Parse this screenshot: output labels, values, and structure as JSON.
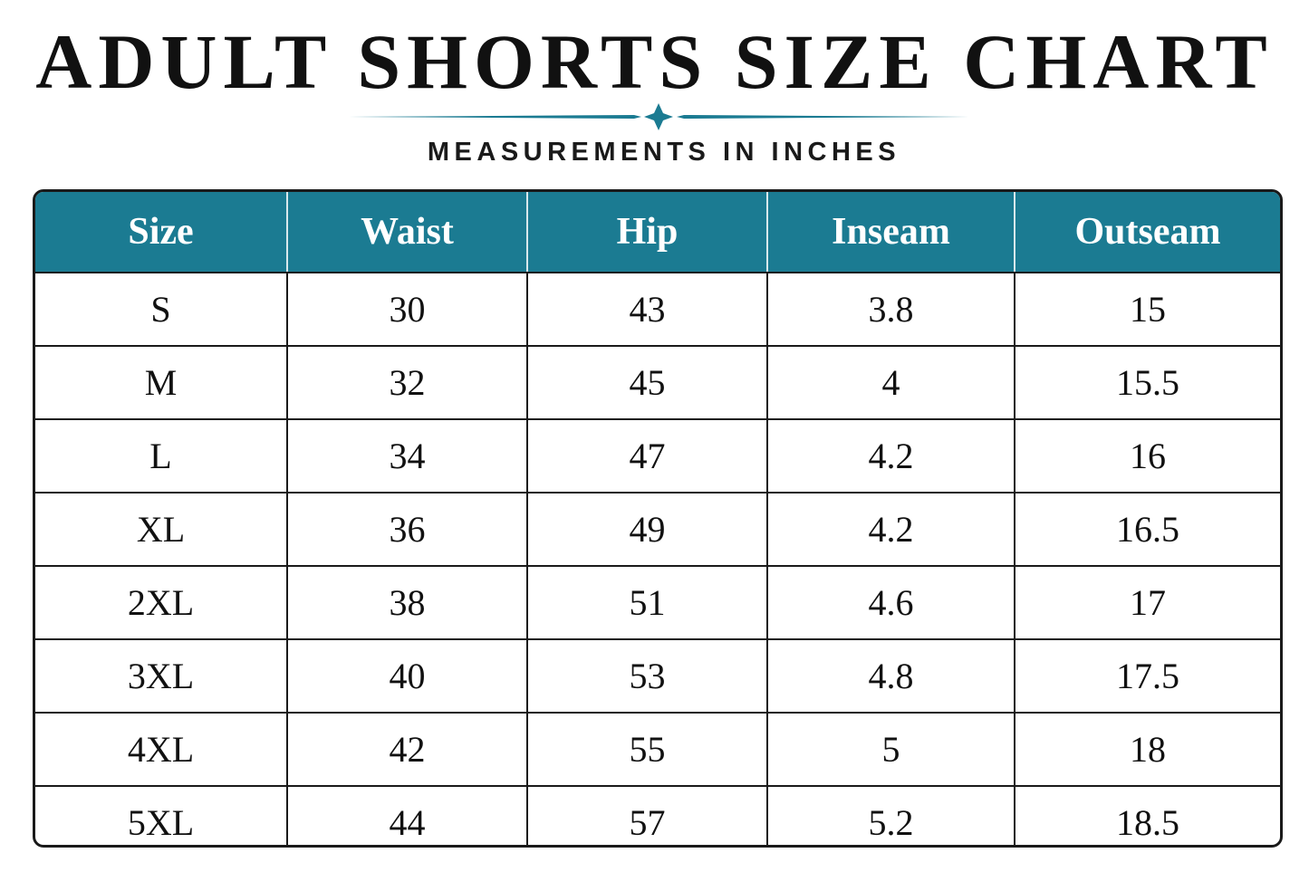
{
  "header": {
    "title": "ADULT SHORTS SIZE CHART",
    "subtitle": "MEASUREMENTS IN INCHES"
  },
  "table": {
    "columns": [
      "Size",
      "Waist",
      "Hip",
      "Inseam",
      "Outseam"
    ],
    "rows": [
      [
        "S",
        "30",
        "43",
        "3.8",
        "15"
      ],
      [
        "M",
        "32",
        "45",
        "4",
        "15.5"
      ],
      [
        "L",
        "34",
        "47",
        "4.2",
        "16"
      ],
      [
        "XL",
        "36",
        "49",
        "4.2",
        "16.5"
      ],
      [
        "2XL",
        "38",
        "51",
        "4.6",
        "17"
      ],
      [
        "3XL",
        "40",
        "53",
        "4.8",
        "17.5"
      ],
      [
        "4XL",
        "42",
        "55",
        "5",
        "18"
      ],
      [
        "5XL",
        "44",
        "57",
        "5.2",
        "18.5"
      ]
    ]
  }
}
